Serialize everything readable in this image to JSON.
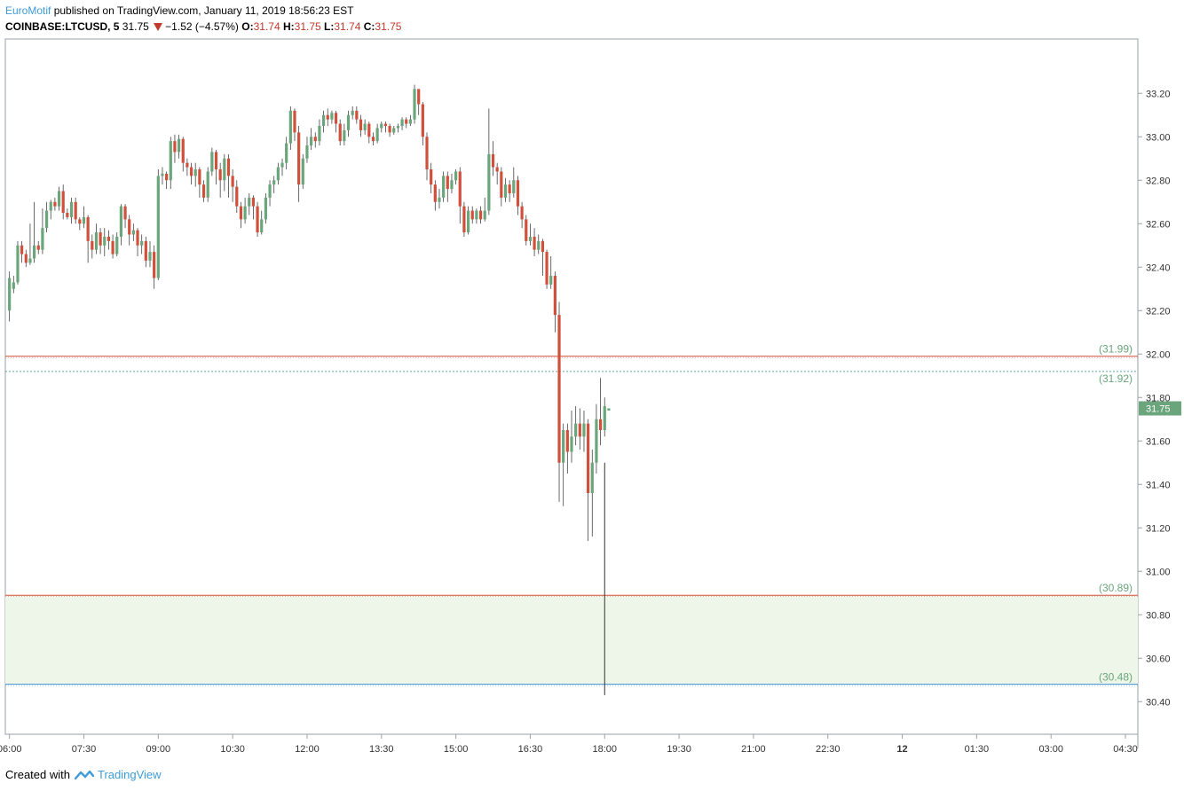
{
  "header": {
    "author": "EuroMotif",
    "published": "published on TradingView.com, January 11, 2019 18:56:23 EST",
    "symbol": "COINBASE:LTCUSD, 5",
    "last": "31.75",
    "change": "−1.52 (−4.57%)",
    "o_label": "O:",
    "o_value": "31.74",
    "h_label": "H:",
    "h_value": "31.75",
    "l_label": "L:",
    "l_value": "31.74",
    "c_label": "C:",
    "c_value": "31.75"
  },
  "footer": {
    "created_with": "Created with",
    "brand": "TradingView"
  },
  "colors": {
    "up": "#6aa57c",
    "down": "#d0503b",
    "zone": "#eef6e9",
    "level_text": "#6aa57c"
  },
  "chart_data": {
    "type": "candlestick",
    "ylim": [
      30.25,
      33.45
    ],
    "y_ticks": [
      30.4,
      30.6,
      30.8,
      31.0,
      31.2,
      31.4,
      31.6,
      31.8,
      32.0,
      32.2,
      32.4,
      32.6,
      32.8,
      33.0,
      33.2
    ],
    "y_tick_labels": [
      "30.40",
      "30.60",
      "30.80",
      "31.00",
      "31.20",
      "31.40",
      "31.60",
      "31.80",
      "32.00",
      "32.20",
      "32.40",
      "32.60",
      "32.80",
      "33.00",
      "33.20"
    ],
    "x_range_bars": [
      -1,
      273
    ],
    "x_ticks": [
      {
        "bar": 0,
        "label": "06:00",
        "bold": false
      },
      {
        "bar": 18,
        "label": "07:30",
        "bold": false
      },
      {
        "bar": 36,
        "label": "09:00",
        "bold": false
      },
      {
        "bar": 54,
        "label": "10:30",
        "bold": false
      },
      {
        "bar": 72,
        "label": "12:00",
        "bold": false
      },
      {
        "bar": 90,
        "label": "13:30",
        "bold": false
      },
      {
        "bar": 108,
        "label": "15:00",
        "bold": false
      },
      {
        "bar": 126,
        "label": "16:30",
        "bold": false
      },
      {
        "bar": 144,
        "label": "18:00",
        "bold": false
      },
      {
        "bar": 162,
        "label": "19:30",
        "bold": false
      },
      {
        "bar": 180,
        "label": "21:00",
        "bold": false
      },
      {
        "bar": 198,
        "label": "22:30",
        "bold": false
      },
      {
        "bar": 216,
        "label": "12",
        "bold": true
      },
      {
        "bar": 234,
        "label": "01:30",
        "bold": false
      },
      {
        "bar": 252,
        "label": "03:00",
        "bold": false
      },
      {
        "bar": 270,
        "label": "04:30",
        "bold": false
      }
    ],
    "levels": [
      {
        "price": 31.99,
        "label": "(31.99)",
        "color": "#d0503b",
        "style": "solid"
      },
      {
        "price": 31.92,
        "label": "(31.92)",
        "color": "#5aa9a0",
        "style": "dotted"
      },
      {
        "price": 30.89,
        "label": "(30.89)",
        "color": "#d0503b",
        "style": "solid"
      },
      {
        "price": 30.48,
        "label": "(30.48)",
        "color": "#3e8fd0",
        "style": "solid"
      }
    ],
    "zone": [
      30.48,
      30.89
    ],
    "last_price": 31.75,
    "last_price_label": "31.75",
    "candles": [
      [
        32.2,
        32.35,
        32.15,
        32.38
      ],
      [
        32.3,
        32.33,
        32.28,
        32.36
      ],
      [
        32.33,
        32.5,
        32.32,
        32.52
      ],
      [
        32.5,
        32.46,
        32.42,
        32.52
      ],
      [
        32.46,
        32.42,
        32.4,
        32.48
      ],
      [
        32.42,
        32.44,
        32.41,
        32.6
      ],
      [
        32.44,
        32.5,
        32.42,
        32.7
      ],
      [
        32.5,
        32.48,
        32.46,
        32.52
      ],
      [
        32.48,
        32.58,
        32.46,
        32.67
      ],
      [
        32.58,
        32.66,
        32.56,
        32.7
      ],
      [
        32.66,
        32.7,
        32.62,
        32.71
      ],
      [
        32.7,
        32.68,
        32.66,
        32.72
      ],
      [
        32.68,
        32.75,
        32.66,
        32.77
      ],
      [
        32.75,
        32.65,
        32.62,
        32.78
      ],
      [
        32.65,
        32.63,
        32.62,
        32.67
      ],
      [
        32.63,
        32.7,
        32.6,
        32.72
      ],
      [
        32.7,
        32.62,
        32.6,
        32.72
      ],
      [
        32.62,
        32.6,
        32.57,
        32.63
      ],
      [
        32.6,
        32.63,
        32.58,
        32.68
      ],
      [
        32.63,
        32.52,
        32.42,
        32.64
      ],
      [
        32.52,
        32.48,
        32.44,
        32.55
      ],
      [
        32.48,
        32.56,
        32.46,
        32.6
      ],
      [
        32.56,
        32.5,
        32.46,
        32.58
      ],
      [
        32.5,
        32.54,
        32.45,
        32.58
      ],
      [
        32.54,
        32.52,
        32.48,
        32.57
      ],
      [
        32.52,
        32.46,
        32.44,
        32.55
      ],
      [
        32.46,
        32.54,
        32.45,
        32.56
      ],
      [
        32.54,
        32.68,
        32.5,
        32.69
      ],
      [
        32.68,
        32.62,
        32.58,
        32.69
      ],
      [
        32.62,
        32.55,
        32.5,
        32.64
      ],
      [
        32.55,
        32.57,
        32.52,
        32.6
      ],
      [
        32.57,
        32.5,
        32.45,
        32.58
      ],
      [
        32.5,
        32.52,
        32.46,
        32.55
      ],
      [
        32.52,
        32.43,
        32.4,
        32.54
      ],
      [
        32.43,
        32.47,
        32.4,
        32.52
      ],
      [
        32.47,
        32.35,
        32.3,
        32.5
      ],
      [
        32.35,
        32.82,
        32.34,
        32.85
      ],
      [
        32.82,
        32.83,
        32.78,
        32.86
      ],
      [
        32.83,
        32.8,
        32.76,
        32.84
      ],
      [
        32.8,
        32.98,
        32.76,
        33.0
      ],
      [
        32.98,
        32.93,
        32.88,
        33.01
      ],
      [
        32.93,
        32.99,
        32.9,
        33.01
      ],
      [
        32.99,
        32.88,
        32.84,
        33.0
      ],
      [
        32.88,
        32.86,
        32.82,
        32.9
      ],
      [
        32.86,
        32.82,
        32.78,
        32.88
      ],
      [
        32.82,
        32.85,
        32.77,
        32.88
      ],
      [
        32.85,
        32.78,
        32.72,
        32.86
      ],
      [
        32.78,
        32.72,
        32.7,
        32.8
      ],
      [
        32.72,
        32.84,
        32.7,
        32.86
      ],
      [
        32.84,
        32.93,
        32.82,
        32.95
      ],
      [
        32.93,
        32.85,
        32.78,
        32.94
      ],
      [
        32.85,
        32.8,
        32.72,
        32.88
      ],
      [
        32.8,
        32.9,
        32.75,
        32.92
      ],
      [
        32.9,
        32.82,
        32.72,
        32.92
      ],
      [
        32.82,
        32.77,
        32.7,
        32.85
      ],
      [
        32.77,
        32.68,
        32.65,
        32.8
      ],
      [
        32.68,
        32.62,
        32.58,
        32.7
      ],
      [
        32.62,
        32.68,
        32.6,
        32.72
      ],
      [
        32.68,
        32.72,
        32.64,
        32.74
      ],
      [
        32.72,
        32.68,
        32.62,
        32.73
      ],
      [
        32.68,
        32.56,
        32.54,
        32.7
      ],
      [
        32.56,
        32.62,
        32.55,
        32.66
      ],
      [
        32.62,
        32.72,
        32.6,
        32.74
      ],
      [
        32.72,
        32.78,
        32.68,
        32.8
      ],
      [
        32.78,
        32.8,
        32.74,
        32.82
      ],
      [
        32.8,
        32.86,
        32.78,
        32.88
      ],
      [
        32.86,
        32.88,
        32.82,
        32.9
      ],
      [
        32.88,
        32.97,
        32.85,
        33.0
      ],
      [
        32.97,
        33.12,
        32.94,
        33.14
      ],
      [
        33.12,
        33.02,
        32.98,
        33.13
      ],
      [
        33.02,
        32.78,
        32.7,
        33.05
      ],
      [
        32.78,
        32.9,
        32.76,
        32.92
      ],
      [
        32.9,
        32.96,
        32.88,
        33.0
      ],
      [
        32.96,
        33.0,
        32.94,
        33.04
      ],
      [
        33.0,
        32.98,
        32.95,
        33.02
      ],
      [
        32.98,
        33.05,
        32.96,
        33.08
      ],
      [
        33.05,
        33.1,
        33.02,
        33.12
      ],
      [
        33.1,
        33.08,
        33.05,
        33.13
      ],
      [
        33.08,
        33.11,
        33.06,
        33.12
      ],
      [
        33.11,
        33.06,
        33.02,
        33.12
      ],
      [
        33.06,
        32.98,
        32.96,
        33.08
      ],
      [
        32.98,
        33.03,
        32.96,
        33.06
      ],
      [
        33.03,
        33.1,
        33.0,
        33.12
      ],
      [
        33.1,
        33.12,
        33.08,
        33.14
      ],
      [
        33.12,
        33.08,
        33.06,
        33.14
      ],
      [
        33.08,
        33.03,
        33.0,
        33.1
      ],
      [
        33.03,
        33.06,
        33.01,
        33.08
      ],
      [
        33.06,
        33.0,
        32.97,
        33.07
      ],
      [
        33.0,
        32.98,
        32.96,
        33.02
      ],
      [
        32.98,
        33.04,
        32.97,
        33.06
      ],
      [
        33.04,
        33.06,
        33.02,
        33.07
      ],
      [
        33.06,
        33.05,
        33.02,
        33.07
      ],
      [
        33.05,
        33.02,
        33.0,
        33.06
      ],
      [
        33.02,
        33.04,
        33.01,
        33.05
      ],
      [
        33.04,
        33.05,
        33.02,
        33.06
      ],
      [
        33.05,
        33.08,
        33.03,
        33.09
      ],
      [
        33.08,
        33.06,
        33.04,
        33.09
      ],
      [
        33.06,
        33.08,
        33.05,
        33.1
      ],
      [
        33.08,
        33.22,
        33.06,
        33.24
      ],
      [
        33.22,
        33.15,
        33.1,
        33.22
      ],
      [
        33.15,
        33.0,
        32.96,
        33.16
      ],
      [
        33.0,
        32.85,
        32.8,
        33.02
      ],
      [
        32.85,
        32.78,
        32.74,
        32.88
      ],
      [
        32.78,
        32.7,
        32.66,
        32.8
      ],
      [
        32.7,
        32.72,
        32.67,
        32.76
      ],
      [
        32.72,
        32.82,
        32.7,
        32.84
      ],
      [
        32.82,
        32.76,
        32.7,
        32.84
      ],
      [
        32.76,
        32.8,
        32.74,
        32.83
      ],
      [
        32.8,
        32.84,
        32.78,
        32.85
      ],
      [
        32.84,
        32.68,
        32.6,
        32.86
      ],
      [
        32.68,
        32.56,
        32.54,
        32.7
      ],
      [
        32.56,
        32.66,
        32.55,
        32.68
      ],
      [
        32.66,
        32.62,
        32.6,
        32.68
      ],
      [
        32.62,
        32.66,
        32.6,
        32.67
      ],
      [
        32.66,
        32.62,
        32.6,
        32.68
      ],
      [
        32.62,
        32.66,
        32.61,
        32.72
      ],
      [
        32.66,
        32.92,
        32.64,
        33.13
      ],
      [
        32.92,
        32.86,
        32.82,
        32.98
      ],
      [
        32.86,
        32.84,
        32.78,
        32.88
      ],
      [
        32.84,
        32.72,
        32.68,
        32.86
      ],
      [
        32.72,
        32.78,
        32.7,
        32.81
      ],
      [
        32.78,
        32.74,
        32.7,
        32.8
      ],
      [
        32.74,
        32.8,
        32.72,
        32.86
      ],
      [
        32.8,
        32.68,
        32.64,
        32.82
      ],
      [
        32.68,
        32.62,
        32.58,
        32.7
      ],
      [
        32.62,
        32.52,
        32.5,
        32.64
      ],
      [
        32.52,
        32.54,
        32.5,
        32.6
      ],
      [
        32.54,
        32.48,
        32.45,
        32.58
      ],
      [
        32.48,
        32.52,
        32.46,
        32.55
      ],
      [
        32.52,
        32.47,
        32.36,
        32.53
      ],
      [
        32.47,
        32.32,
        32.3,
        32.48
      ],
      [
        32.32,
        32.36,
        32.3,
        32.45
      ],
      [
        32.36,
        32.18,
        32.1,
        32.38
      ],
      [
        32.18,
        31.5,
        31.32,
        32.24
      ],
      [
        31.5,
        31.65,
        31.3,
        31.68
      ],
      [
        31.65,
        31.55,
        31.45,
        31.68
      ],
      [
        31.55,
        31.62,
        31.5,
        31.74
      ],
      [
        31.62,
        31.68,
        31.58,
        31.76
      ],
      [
        31.68,
        31.62,
        31.56,
        31.75
      ],
      [
        31.62,
        31.68,
        31.55,
        31.74
      ],
      [
        31.68,
        31.36,
        31.14,
        31.7
      ],
      [
        31.36,
        31.5,
        31.16,
        31.56
      ],
      [
        31.5,
        31.7,
        31.45,
        31.77
      ],
      [
        31.7,
        31.65,
        31.58,
        31.89
      ],
      [
        31.65,
        31.76,
        31.62,
        31.8
      ],
      [
        31.74,
        31.75,
        31.74,
        31.75
      ]
    ],
    "spike_wick": {
      "bar": 144,
      "low": 30.43
    }
  }
}
